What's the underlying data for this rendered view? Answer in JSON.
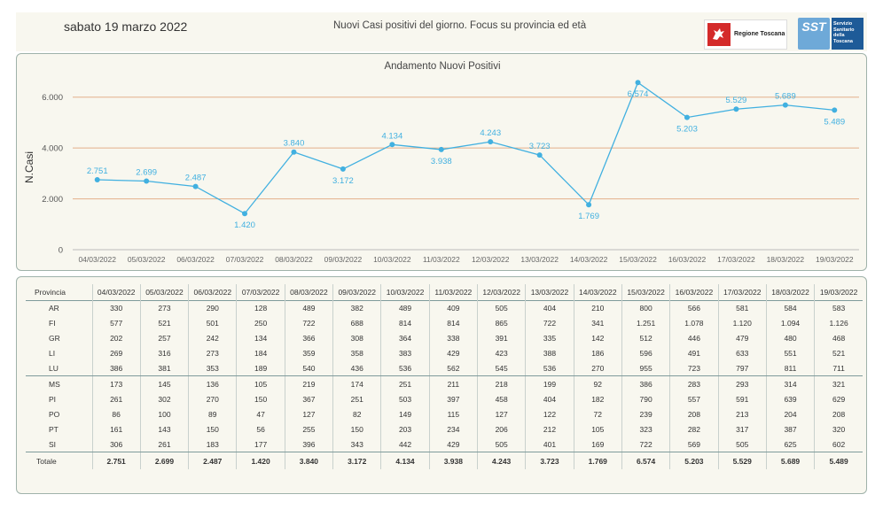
{
  "header": {
    "date": "sabato 19 marzo 2022",
    "title": "Nuovi Casi positivi del giorno. Focus su provincia ed età",
    "logo_regione": "Regione Toscana",
    "logo_sst_short": "SST",
    "logo_sst_lines": [
      "Servizio",
      "Sanitario",
      "della",
      "Toscana"
    ]
  },
  "chart_data": {
    "type": "line",
    "title": "Andamento Nuovi Positivi",
    "ylabel": "N.Casi",
    "xlabel": "",
    "x": [
      "04/03/2022",
      "05/03/2022",
      "06/03/2022",
      "07/03/2022",
      "08/03/2022",
      "09/03/2022",
      "10/03/2022",
      "11/03/2022",
      "12/03/2022",
      "13/03/2022",
      "14/03/2022",
      "15/03/2022",
      "16/03/2022",
      "17/03/2022",
      "18/03/2022",
      "19/03/2022"
    ],
    "values": [
      2751,
      2699,
      2487,
      1420,
      3840,
      3172,
      4134,
      3938,
      4243,
      3723,
      1769,
      6574,
      5203,
      5529,
      5689,
      5489
    ],
    "value_labels": [
      "2.751",
      "2.699",
      "2.487",
      "1.420",
      "3.840",
      "3.172",
      "4.134",
      "3.938",
      "4.243",
      "3.723",
      "1.769",
      "6.574",
      "5.203",
      "5.529",
      "5.689",
      "5.489"
    ],
    "label_pos": [
      "above",
      "above",
      "above",
      "below",
      "above",
      "below",
      "above",
      "below",
      "above",
      "above",
      "below",
      "below",
      "below",
      "above",
      "above",
      "below"
    ],
    "ylim": [
      0,
      7000
    ],
    "yticks": [
      0,
      2000,
      4000,
      6000
    ],
    "ytick_labels": [
      "0",
      "2.000",
      "4.000",
      "6.000"
    ],
    "grid": true,
    "colors": {
      "line": "#41b0e0",
      "grid": "#e3b08a",
      "axis": "#bbbbbb"
    }
  },
  "table": {
    "header_label": "Provincia",
    "dates": [
      "04/03/2022",
      "05/03/2022",
      "06/03/2022",
      "07/03/2022",
      "08/03/2022",
      "09/03/2022",
      "10/03/2022",
      "11/03/2022",
      "12/03/2022",
      "13/03/2022",
      "14/03/2022",
      "15/03/2022",
      "16/03/2022",
      "17/03/2022",
      "18/03/2022",
      "19/03/2022"
    ],
    "rows": [
      {
        "prov": "AR",
        "values": [
          "330",
          "273",
          "290",
          "128",
          "489",
          "382",
          "489",
          "409",
          "505",
          "404",
          "210",
          "800",
          "566",
          "581",
          "584",
          "583"
        ]
      },
      {
        "prov": "FI",
        "values": [
          "577",
          "521",
          "501",
          "250",
          "722",
          "688",
          "814",
          "814",
          "865",
          "722",
          "341",
          "1.251",
          "1.078",
          "1.120",
          "1.094",
          "1.126"
        ]
      },
      {
        "prov": "GR",
        "values": [
          "202",
          "257",
          "242",
          "134",
          "366",
          "308",
          "364",
          "338",
          "391",
          "335",
          "142",
          "512",
          "446",
          "479",
          "480",
          "468"
        ]
      },
      {
        "prov": "LI",
        "values": [
          "269",
          "316",
          "273",
          "184",
          "359",
          "358",
          "383",
          "429",
          "423",
          "388",
          "186",
          "596",
          "491",
          "633",
          "551",
          "521"
        ]
      },
      {
        "prov": "LU",
        "values": [
          "386",
          "381",
          "353",
          "189",
          "540",
          "436",
          "536",
          "562",
          "545",
          "536",
          "270",
          "955",
          "723",
          "797",
          "811",
          "711"
        ]
      },
      {
        "prov": "MS",
        "values": [
          "173",
          "145",
          "136",
          "105",
          "219",
          "174",
          "251",
          "211",
          "218",
          "199",
          "92",
          "386",
          "283",
          "293",
          "314",
          "321"
        ]
      },
      {
        "prov": "PI",
        "values": [
          "261",
          "302",
          "270",
          "150",
          "367",
          "251",
          "503",
          "397",
          "458",
          "404",
          "182",
          "790",
          "557",
          "591",
          "639",
          "629"
        ]
      },
      {
        "prov": "PO",
        "values": [
          "86",
          "100",
          "89",
          "47",
          "127",
          "82",
          "149",
          "115",
          "127",
          "122",
          "72",
          "239",
          "208",
          "213",
          "204",
          "208"
        ]
      },
      {
        "prov": "PT",
        "values": [
          "161",
          "143",
          "150",
          "56",
          "255",
          "150",
          "203",
          "234",
          "206",
          "212",
          "105",
          "323",
          "282",
          "317",
          "387",
          "320"
        ]
      },
      {
        "prov": "SI",
        "values": [
          "306",
          "261",
          "183",
          "177",
          "396",
          "343",
          "442",
          "429",
          "505",
          "401",
          "169",
          "722",
          "569",
          "505",
          "625",
          "602"
        ]
      }
    ],
    "total": {
      "prov": "Totale",
      "values": [
        "2.751",
        "2.699",
        "2.487",
        "1.420",
        "3.840",
        "3.172",
        "4.134",
        "3.938",
        "4.243",
        "3.723",
        "1.769",
        "6.574",
        "5.203",
        "5.529",
        "5.689",
        "5.489"
      ]
    }
  }
}
